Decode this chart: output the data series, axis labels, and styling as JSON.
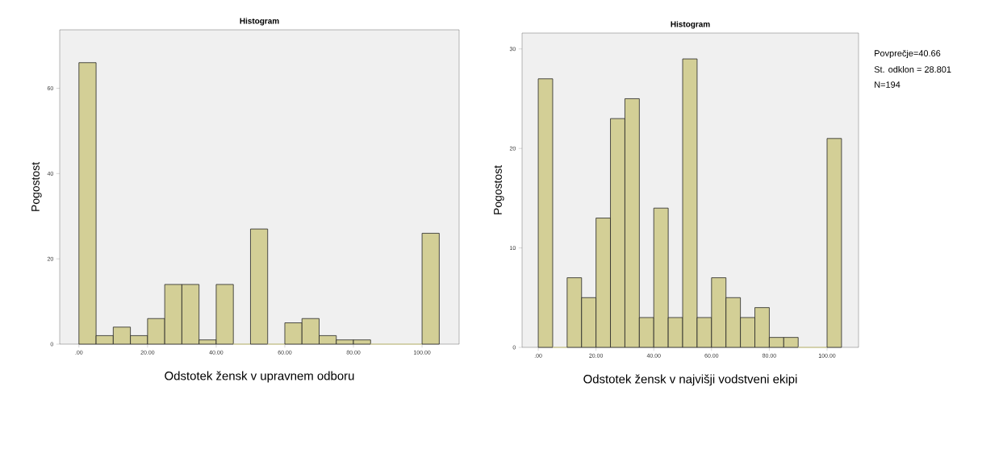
{
  "chart_data": [
    {
      "type": "histogram",
      "title": "Histogram",
      "xlabel": "Odstotek žensk v upravnem odboru",
      "ylabel": "Pogostost",
      "bins": [
        0,
        5,
        10,
        15,
        20,
        25,
        30,
        35,
        40,
        45,
        50,
        55,
        60,
        65,
        70,
        75,
        80,
        85,
        90,
        95,
        100,
        105
      ],
      "values": [
        66,
        2,
        4,
        2,
        6,
        14,
        14,
        1,
        14,
        0,
        27,
        0,
        5,
        6,
        2,
        1,
        1,
        0,
        0,
        0,
        26
      ],
      "color": "#d3cf96",
      "xlim": [
        -5.6,
        110.8
      ],
      "ylim": [
        0,
        73.7
      ],
      "xticks": [
        {
          "value": 0,
          "label": ".00"
        },
        {
          "value": 20,
          "label": "20.00"
        },
        {
          "value": 40,
          "label": "40.00"
        },
        {
          "value": 60,
          "label": "60.00"
        },
        {
          "value": 80,
          "label": "80.00"
        },
        {
          "value": 100,
          "label": "100.00"
        }
      ],
      "yticks": [
        0,
        20,
        40,
        60
      ],
      "grid": false
    },
    {
      "type": "histogram",
      "title": "Histogram",
      "xlabel": "Odstotek žensk v najvišji vodstveni ekipi",
      "ylabel": "Pogostost",
      "bins": [
        0,
        5,
        10,
        15,
        20,
        25,
        30,
        35,
        40,
        45,
        50,
        55,
        60,
        65,
        70,
        75,
        80,
        85,
        90,
        95,
        100,
        105
      ],
      "values": [
        27,
        0,
        7,
        5,
        13,
        23,
        25,
        3,
        14,
        3,
        29,
        3,
        7,
        5,
        3,
        4,
        1,
        1,
        0,
        0,
        21
      ],
      "color": "#d3cf96",
      "xlim": [
        -5.6,
        110.9
      ],
      "ylim": [
        0,
        31.6
      ],
      "xticks": [
        {
          "value": 0,
          "label": ".00"
        },
        {
          "value": 20,
          "label": "20.00"
        },
        {
          "value": 40,
          "label": "40.00"
        },
        {
          "value": 60,
          "label": "60.00"
        },
        {
          "value": 80,
          "label": "80.00"
        },
        {
          "value": 100,
          "label": "100.00"
        }
      ],
      "yticks": [
        0,
        10,
        20,
        30
      ],
      "grid": false,
      "annotations": [
        "Povprečje=40.66",
        "St. odklon = 28.801",
        "N=194"
      ]
    }
  ]
}
